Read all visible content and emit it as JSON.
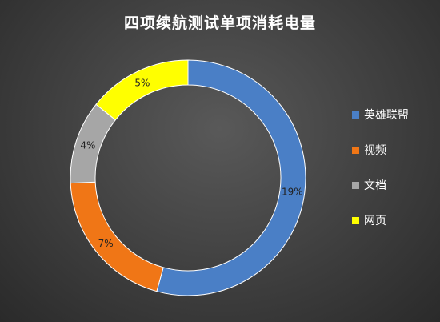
{
  "chart_data": {
    "type": "pie",
    "title": "四项续航测试单项消耗电量",
    "categories": [
      "英雄联盟",
      "视频",
      "文档",
      "网页"
    ],
    "values": [
      19,
      7,
      4,
      5
    ],
    "value_labels": [
      "19%",
      "7%",
      "4%",
      "5%"
    ],
    "colors": [
      "#4a7fc6",
      "#f07616",
      "#a6a6a6",
      "#ffff00"
    ],
    "style": "doughnut",
    "legend_position": "right"
  }
}
